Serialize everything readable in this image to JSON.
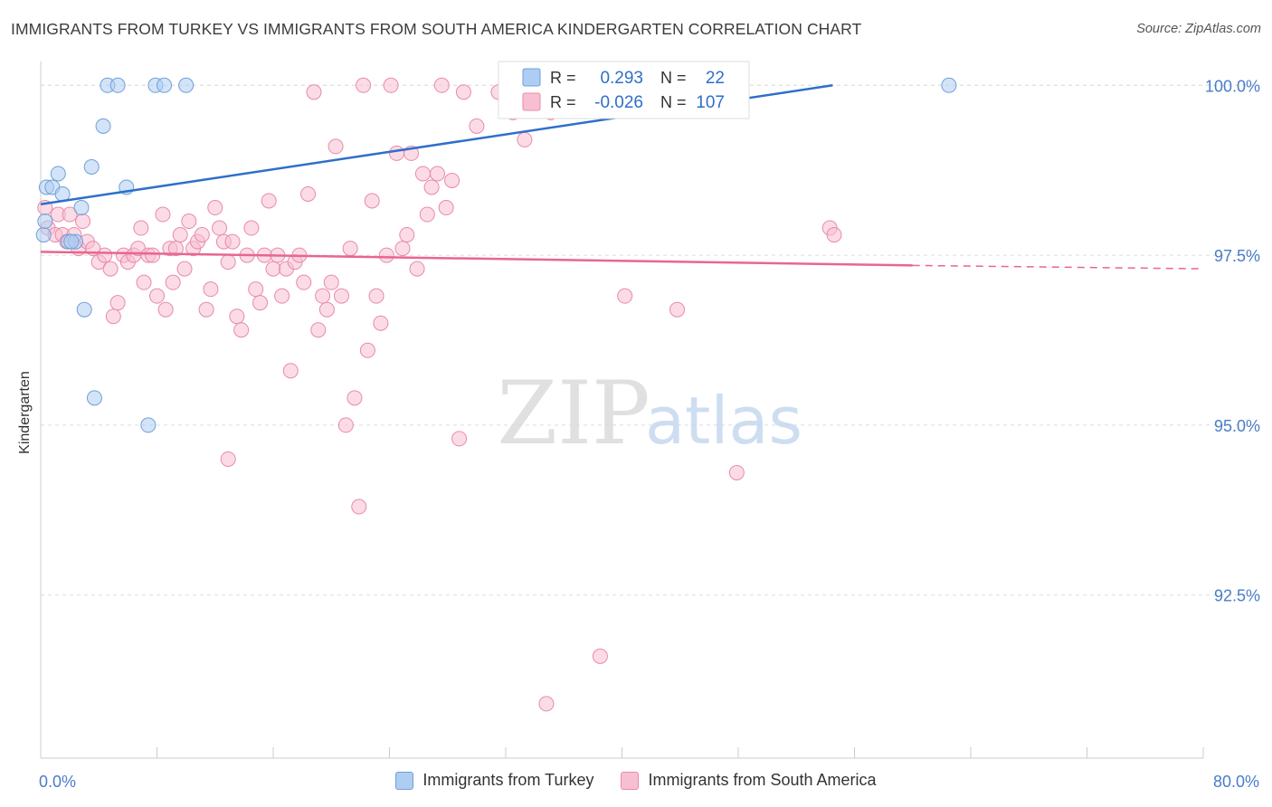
{
  "header": {
    "title": "IMMIGRANTS FROM TURKEY VS IMMIGRANTS FROM SOUTH AMERICA KINDERGARTEN CORRELATION CHART",
    "source": "Source: ZipAtlas.com"
  },
  "watermark": {
    "zip": "ZIP",
    "atlas": "atlas"
  },
  "colors": {
    "blue_fill": "#aecdf2",
    "blue_stroke": "#6f9fd8",
    "blue_line": "#2e6fca",
    "pink_fill": "#f7c0d2",
    "pink_stroke": "#e88aaa",
    "pink_line": "#e8668f",
    "axis_text": "#4a7cc9",
    "grid": "#dddddd"
  },
  "stats_box": {
    "rows": [
      {
        "r_label": "R =",
        "r_value": "0.293",
        "n_label": "N =",
        "n_value": "22"
      },
      {
        "r_label": "R =",
        "r_value": "-0.026",
        "n_label": "N =",
        "n_value": "107"
      }
    ]
  },
  "chart_data": {
    "type": "scatter",
    "title": "IMMIGRANTS FROM TURKEY VS IMMIGRANTS FROM SOUTH AMERICA KINDERGARTEN CORRELATION CHART",
    "xlabel": "",
    "ylabel": "Kindergarten",
    "xlim": [
      0,
      80
    ],
    "ylim": [
      90.1,
      100.35
    ],
    "x_tick_labels": [
      "0.0%",
      "80.0%"
    ],
    "y_ticks": [
      {
        "value": 100.0,
        "label": "100.0%"
      },
      {
        "value": 97.5,
        "label": "97.5%"
      },
      {
        "value": 95.0,
        "label": "95.0%"
      },
      {
        "value": 92.5,
        "label": "92.5%"
      }
    ],
    "grid": true,
    "legend": [
      {
        "name": "Immigrants from Turkey",
        "color": "blue"
      },
      {
        "name": "Immigrants from South America",
        "color": "pink"
      }
    ],
    "series": [
      {
        "name": "Immigrants from Turkey",
        "color": "blue",
        "r": 0.293,
        "n": 22,
        "trend": {
          "x": [
            0,
            54.5
          ],
          "y": [
            98.25,
            100.0
          ]
        },
        "points": [
          [
            0.2,
            97.8
          ],
          [
            0.3,
            98.0
          ],
          [
            0.4,
            98.5
          ],
          [
            0.8,
            98.5
          ],
          [
            1.2,
            98.7
          ],
          [
            1.5,
            98.4
          ],
          [
            1.9,
            97.7
          ],
          [
            2.4,
            97.7
          ],
          [
            2.8,
            98.2
          ],
          [
            3.0,
            96.7
          ],
          [
            3.5,
            98.8
          ],
          [
            3.7,
            95.4
          ],
          [
            4.3,
            99.4
          ],
          [
            4.6,
            100.0
          ],
          [
            5.3,
            100.0
          ],
          [
            5.9,
            98.5
          ],
          [
            7.4,
            95.0
          ],
          [
            7.9,
            100.0
          ],
          [
            8.5,
            100.0
          ],
          [
            10.0,
            100.0
          ],
          [
            62.5,
            100.0
          ],
          [
            2.1,
            97.7
          ]
        ]
      },
      {
        "name": "Immigrants from South America",
        "color": "pink",
        "r": -0.026,
        "n": 107,
        "trend": {
          "x": [
            0,
            60.0
          ],
          "y": [
            97.55,
            97.35
          ],
          "dashed_to": [
            80.0,
            97.3
          ]
        },
        "points": [
          [
            0.3,
            98.2
          ],
          [
            0.5,
            97.9
          ],
          [
            1.0,
            97.8
          ],
          [
            1.2,
            98.1
          ],
          [
            1.5,
            97.8
          ],
          [
            1.8,
            97.7
          ],
          [
            2.0,
            98.1
          ],
          [
            2.3,
            97.8
          ],
          [
            2.6,
            97.6
          ],
          [
            2.9,
            98.0
          ],
          [
            3.2,
            97.7
          ],
          [
            3.6,
            97.6
          ],
          [
            4.0,
            97.4
          ],
          [
            4.4,
            97.5
          ],
          [
            4.8,
            97.3
          ],
          [
            5.0,
            96.6
          ],
          [
            5.3,
            96.8
          ],
          [
            5.7,
            97.5
          ],
          [
            6.0,
            97.4
          ],
          [
            6.4,
            97.5
          ],
          [
            6.7,
            97.6
          ],
          [
            6.9,
            97.9
          ],
          [
            7.1,
            97.1
          ],
          [
            7.4,
            97.5
          ],
          [
            7.7,
            97.5
          ],
          [
            8.0,
            96.9
          ],
          [
            8.4,
            98.1
          ],
          [
            8.6,
            96.7
          ],
          [
            8.9,
            97.6
          ],
          [
            9.1,
            97.1
          ],
          [
            9.3,
            97.6
          ],
          [
            9.6,
            97.8
          ],
          [
            9.9,
            97.3
          ],
          [
            10.2,
            98.0
          ],
          [
            10.5,
            97.6
          ],
          [
            10.8,
            97.7
          ],
          [
            11.1,
            97.8
          ],
          [
            11.4,
            96.7
          ],
          [
            11.7,
            97.0
          ],
          [
            12.0,
            98.2
          ],
          [
            12.3,
            97.9
          ],
          [
            12.6,
            97.7
          ],
          [
            12.9,
            97.4
          ],
          [
            13.2,
            97.7
          ],
          [
            13.5,
            96.6
          ],
          [
            13.8,
            96.4
          ],
          [
            14.2,
            97.5
          ],
          [
            14.5,
            97.9
          ],
          [
            14.8,
            97.0
          ],
          [
            15.1,
            96.8
          ],
          [
            15.4,
            97.5
          ],
          [
            15.7,
            98.3
          ],
          [
            16.0,
            97.3
          ],
          [
            16.3,
            97.5
          ],
          [
            16.6,
            96.9
          ],
          [
            16.9,
            97.3
          ],
          [
            17.2,
            95.8
          ],
          [
            17.5,
            97.4
          ],
          [
            17.8,
            97.5
          ],
          [
            18.1,
            97.1
          ],
          [
            18.4,
            98.4
          ],
          [
            18.8,
            99.9
          ],
          [
            19.1,
            96.4
          ],
          [
            19.4,
            96.9
          ],
          [
            19.7,
            96.7
          ],
          [
            20.0,
            97.1
          ],
          [
            20.3,
            99.1
          ],
          [
            20.7,
            96.9
          ],
          [
            21.0,
            95.0
          ],
          [
            21.3,
            97.6
          ],
          [
            21.6,
            95.4
          ],
          [
            21.9,
            93.8
          ],
          [
            22.2,
            100.0
          ],
          [
            22.5,
            96.1
          ],
          [
            22.8,
            98.3
          ],
          [
            23.1,
            96.9
          ],
          [
            23.4,
            96.5
          ],
          [
            23.8,
            97.5
          ],
          [
            24.1,
            100.0
          ],
          [
            24.5,
            99.0
          ],
          [
            24.9,
            97.6
          ],
          [
            25.2,
            97.8
          ],
          [
            25.5,
            99.0
          ],
          [
            25.9,
            97.3
          ],
          [
            26.3,
            98.7
          ],
          [
            26.6,
            98.1
          ],
          [
            26.9,
            98.5
          ],
          [
            27.3,
            98.7
          ],
          [
            27.6,
            100.0
          ],
          [
            27.9,
            98.2
          ],
          [
            28.3,
            98.6
          ],
          [
            28.8,
            94.8
          ],
          [
            29.1,
            99.9
          ],
          [
            30.0,
            99.4
          ],
          [
            31.5,
            99.9
          ],
          [
            32.5,
            99.6
          ],
          [
            33.3,
            99.2
          ],
          [
            34.8,
            90.9
          ],
          [
            35.1,
            99.6
          ],
          [
            35.8,
            100.0
          ],
          [
            38.5,
            91.6
          ],
          [
            40.2,
            96.9
          ],
          [
            43.8,
            96.7
          ],
          [
            47.9,
            94.3
          ],
          [
            54.3,
            97.9
          ],
          [
            54.6,
            97.8
          ],
          [
            12.9,
            94.5
          ]
        ]
      }
    ]
  },
  "legend_bottom": {
    "items": [
      {
        "label": "Immigrants from Turkey"
      },
      {
        "label": "Immigrants from South America"
      }
    ]
  }
}
